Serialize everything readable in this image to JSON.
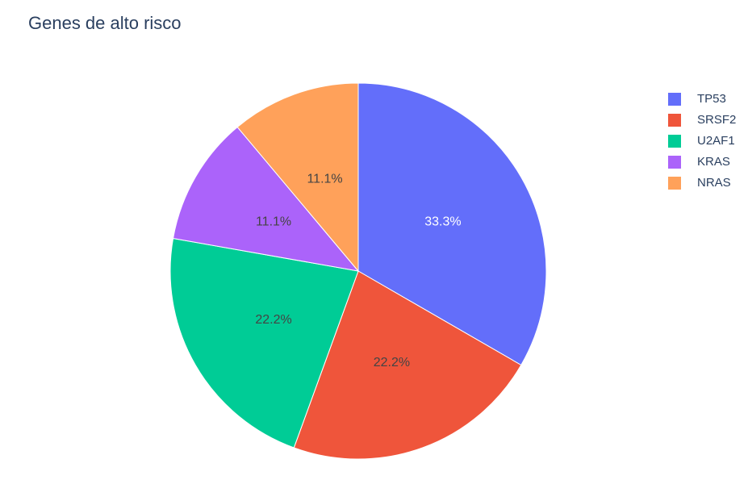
{
  "chart_data": {
    "type": "pie",
    "title": "Genes de alto risco",
    "labels": [
      "TP53",
      "SRSF2",
      "U2AF1",
      "KRAS",
      "NRAS"
    ],
    "values": [
      3,
      2,
      2,
      1,
      1
    ],
    "percent_labels": [
      "33.3%",
      "22.2%",
      "22.2%",
      "11.1%",
      "11.1%"
    ],
    "colors": [
      "#636efa",
      "#EF553B",
      "#00cc96",
      "#ab63fa",
      "#FFA15A"
    ],
    "label_colors": [
      "#ffffff",
      "#444444",
      "#444444",
      "#444444",
      "#444444"
    ],
    "legend": {
      "placement": "top-right",
      "entries": [
        "TP53",
        "SRSF2",
        "U2AF1",
        "KRAS",
        "NRAS"
      ]
    },
    "direction": "clockwise",
    "start_angle": "12 o'clock"
  }
}
